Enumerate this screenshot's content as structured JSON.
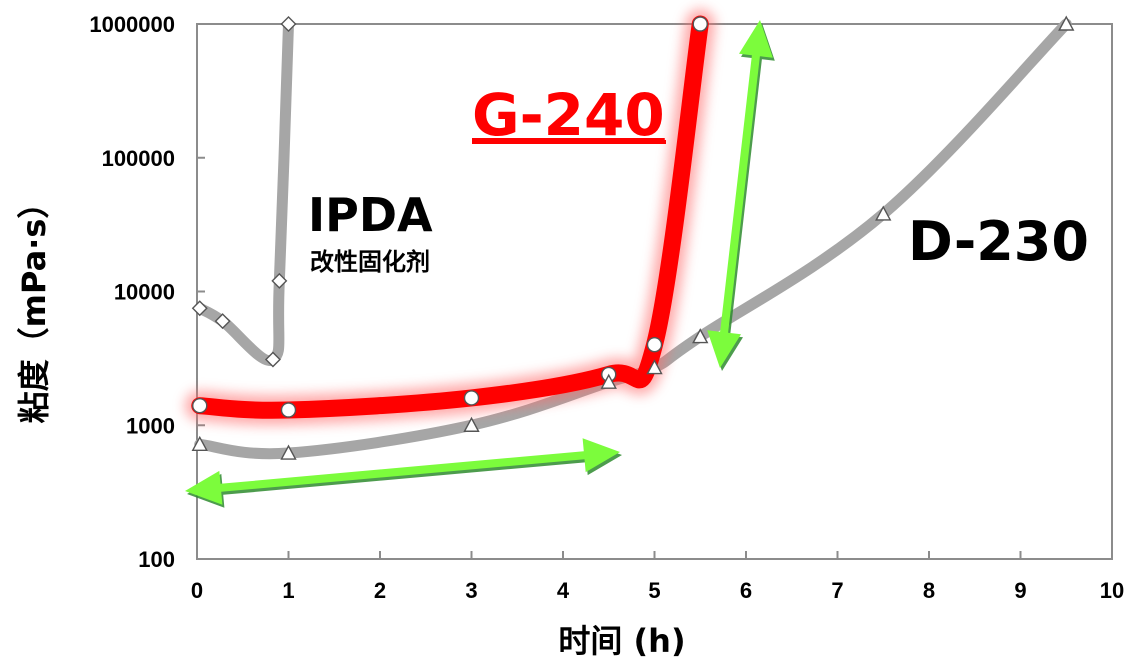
{
  "chart_data": {
    "type": "line",
    "xlabel": "时间 (h)",
    "ylabel": "粘度（mPa·s）",
    "x_scale": "linear",
    "y_scale": "log",
    "xlim": [
      0,
      10
    ],
    "ylim": [
      100,
      1000000
    ],
    "x_ticks": [
      "0",
      "1",
      "2",
      "3",
      "4",
      "5",
      "6",
      "7",
      "8",
      "9",
      "10"
    ],
    "y_ticks": [
      "100",
      "1000",
      "10000",
      "100000",
      "1000000"
    ],
    "grid": false,
    "series": [
      {
        "name": "IPDA",
        "note": "改性固化剂",
        "color": "#a6a6a6",
        "marker": "diamond",
        "points": [
          [
            0.03,
            7500
          ],
          [
            0.28,
            6000
          ],
          [
            0.83,
            3100
          ],
          [
            0.9,
            12000
          ],
          [
            1.0,
            1000000
          ]
        ]
      },
      {
        "name": "G-240",
        "color": "#ff0000",
        "marker": "circle",
        "points": [
          [
            0.03,
            1400
          ],
          [
            1.0,
            1300
          ],
          [
            3.0,
            1600
          ],
          [
            4.5,
            2400
          ],
          [
            5.0,
            4000
          ],
          [
            5.5,
            1000000
          ]
        ]
      },
      {
        "name": "D-230",
        "color": "#a6a6a6",
        "marker": "triangle",
        "points": [
          [
            0.03,
            720
          ],
          [
            1.0,
            620
          ],
          [
            3.0,
            1000
          ],
          [
            4.5,
            2100
          ],
          [
            5.0,
            2700
          ],
          [
            5.5,
            4600
          ],
          [
            7.5,
            38000
          ],
          [
            9.5,
            1000000
          ]
        ]
      }
    ],
    "annotations": [
      {
        "text": "IPDA",
        "style": "big"
      },
      {
        "text": "改性固化剂",
        "style": "small"
      },
      {
        "text": "G-240",
        "style": "red"
      },
      {
        "text": "D-230",
        "style": "big"
      }
    ]
  }
}
